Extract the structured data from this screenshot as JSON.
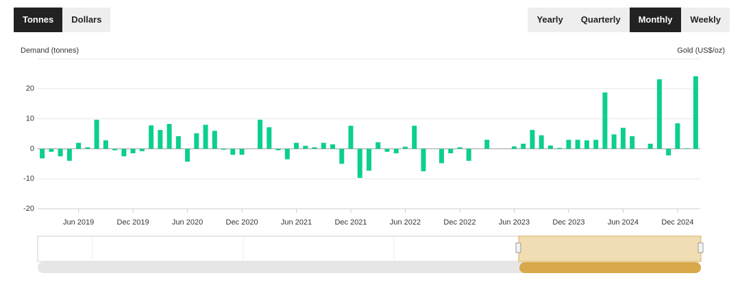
{
  "unit_buttons": [
    "Tonnes",
    "Dollars"
  ],
  "unit_active": 0,
  "period_buttons": [
    "Yearly",
    "Quarterly",
    "Monthly",
    "Weekly"
  ],
  "period_active": 2,
  "chart_data": {
    "type": "bar",
    "y_label": "Demand (tonnes)",
    "y2_label": "Gold (US$/oz)",
    "categories": [
      null,
      null,
      null,
      null,
      "Jun 2019",
      null,
      null,
      null,
      null,
      null,
      "Dec 2019",
      null,
      null,
      null,
      null,
      null,
      "Jun 2020",
      null,
      null,
      null,
      null,
      null,
      "Dec 2020",
      null,
      null,
      null,
      null,
      null,
      "Jun 2021",
      null,
      null,
      null,
      null,
      null,
      "Dec 2021",
      null,
      null,
      null,
      null,
      null,
      "Jun 2022",
      null,
      null,
      null,
      null,
      null,
      "Dec 2022",
      null,
      null,
      null,
      null,
      null,
      "Jun 2023",
      null,
      null,
      null,
      null,
      null,
      "Dec 2023",
      null,
      null,
      null,
      null,
      null,
      "Jun 2024",
      null,
      null,
      null,
      null,
      null,
      "Dec 2024",
      null,
      null
    ],
    "values": [
      -3.2,
      -1,
      -2.5,
      -4,
      2,
      0.5,
      9.7,
      2.8,
      -0.5,
      -2.5,
      -1.5,
      -0.8,
      7.8,
      6.3,
      8.3,
      4.2,
      -4.3,
      5.2,
      8,
      6,
      -0.3,
      -2,
      -2,
      0,
      9.7,
      7.2,
      -0.5,
      -3.5,
      2,
      1,
      0.5,
      2,
      1.5,
      -5,
      7.7,
      -9.7,
      -7.3,
      2.2,
      -1,
      -1.5,
      0.7,
      7.7,
      -7.5,
      0,
      -4.8,
      -1.5,
      0.5,
      -4,
      0,
      3,
      0,
      0,
      0.8,
      1.7,
      6.3,
      4.5,
      1.1,
      0.3,
      3,
      3,
      2.8,
      3,
      18.8,
      4.8,
      7,
      4.2,
      0,
      1.7,
      23.2,
      -2.2,
      8.5,
      0.2,
      24.2
    ],
    "color": "#0ccf8f",
    "ylim": [
      -20,
      30
    ],
    "yticks": [
      -20,
      -10,
      0,
      10,
      20
    ],
    "grid": true
  }
}
